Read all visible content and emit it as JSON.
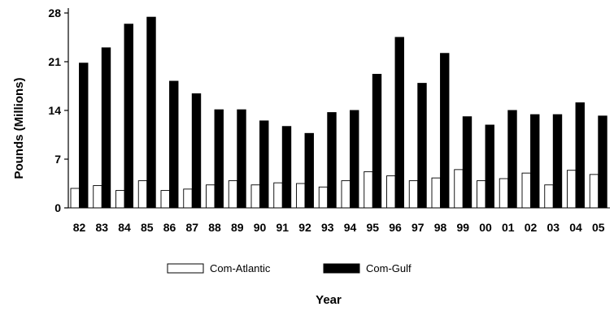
{
  "chart_data": {
    "type": "bar",
    "title": "",
    "xlabel": "Year",
    "ylabel": "Pounds  (Millions)",
    "ylim": [
      0,
      28
    ],
    "yticks": [
      0,
      7,
      14,
      21,
      28
    ],
    "grid": false,
    "legend_position": "bottom",
    "categories": [
      "82",
      "83",
      "84",
      "85",
      "86",
      "87",
      "88",
      "89",
      "90",
      "91",
      "92",
      "93",
      "94",
      "95",
      "96",
      "97",
      "98",
      "99",
      "00",
      "01",
      "02",
      "03",
      "04",
      "05"
    ],
    "series": [
      {
        "name": "Com-Atlantic",
        "color": "#ffffff",
        "values": [
          2.8,
          3.2,
          2.5,
          3.9,
          2.5,
          2.7,
          3.3,
          3.9,
          3.3,
          3.6,
          3.5,
          3.0,
          3.9,
          5.2,
          4.6,
          3.9,
          4.3,
          5.5,
          3.9,
          4.2,
          5.0,
          3.3,
          5.4,
          4.8
        ]
      },
      {
        "name": "Com-Gulf",
        "color": "#000000",
        "values": [
          20.8,
          23.0,
          26.4,
          27.4,
          18.2,
          16.4,
          14.1,
          14.1,
          12.5,
          11.7,
          10.7,
          13.7,
          14.0,
          19.2,
          24.5,
          17.9,
          22.2,
          13.1,
          11.9,
          14.0,
          13.4,
          13.4,
          15.1,
          13.2
        ]
      }
    ]
  }
}
